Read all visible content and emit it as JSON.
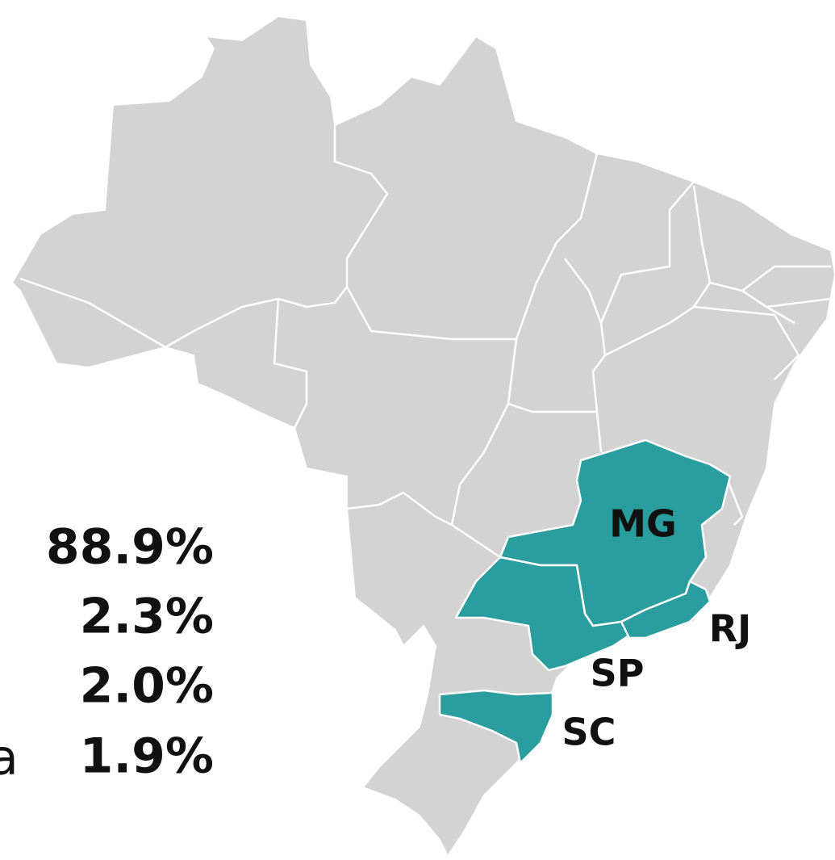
{
  "map": {
    "regions": [
      {
        "label": "MG"
      },
      {
        "label": "RJ"
      },
      {
        "label": "SP"
      },
      {
        "label": "SC"
      }
    ]
  },
  "stats": {
    "partial_label": "a",
    "values": [
      "88.9%",
      "2.3%",
      "2.0%",
      "1.9%"
    ]
  }
}
